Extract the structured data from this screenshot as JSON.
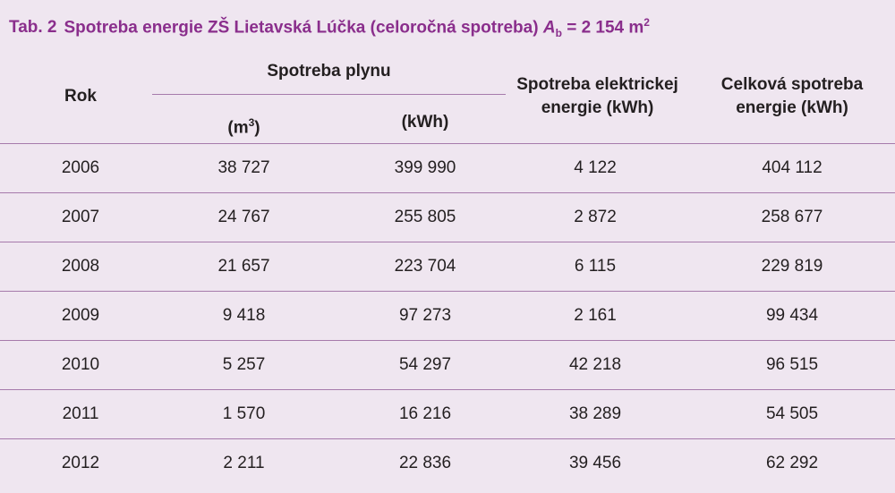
{
  "title": {
    "label": "Tab. 2",
    "text": "Spotreba energie ZŠ Lietavská Lúčka (celoročná spotreba)",
    "symbol": "A",
    "symbol_sub": "b",
    "value": "= 2 154 m",
    "value_sup": "2"
  },
  "table": {
    "header": {
      "year": "Rok",
      "gas": "Spotreba plynu",
      "gas_m3_open": "(m",
      "gas_m3_sup": "3",
      "gas_m3_close": ")",
      "gas_kwh": "(kWh)",
      "electricity": "Spotreba elektrickej energie (kWh)",
      "total": "Celková spotreba energie (kWh)"
    },
    "rows": [
      [
        "2006",
        "38 727",
        "399 990",
        "4 122",
        "404 112"
      ],
      [
        "2007",
        "24 767",
        "255 805",
        "2 872",
        "258 677"
      ],
      [
        "2008",
        "21 657",
        "223 704",
        "6 115",
        "229 819"
      ],
      [
        "2009",
        "9 418",
        "97 273",
        "2 161",
        "99 434"
      ],
      [
        "2010",
        "5 257",
        "54 297",
        "42 218",
        "96 515"
      ],
      [
        "2011",
        "1 570",
        "16 216",
        "38 289",
        "54 505"
      ],
      [
        "2012",
        "2 211",
        "22 836",
        "39 456",
        "62 292"
      ]
    ]
  }
}
